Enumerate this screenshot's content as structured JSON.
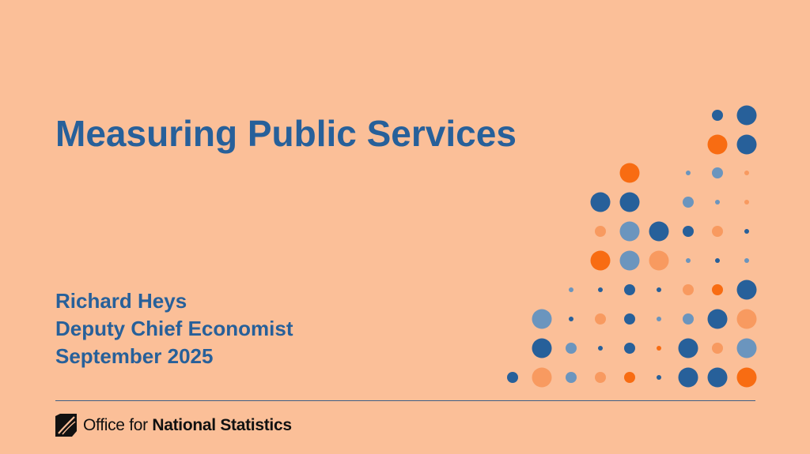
{
  "slide": {
    "title": "Measuring Public Services",
    "presenter_name": "Richard Heys",
    "presenter_role": "Deputy Chief Economist",
    "date": "September 2025"
  },
  "logo": {
    "prefix": "Office for",
    "name": "National Statistics"
  },
  "colors": {
    "background": "#FBBF98",
    "title": "#27609A",
    "dark_blue": "#27609A",
    "light_blue": "#6B95BE",
    "orange": "#F86C12",
    "light_orange": "#F89A60"
  }
}
